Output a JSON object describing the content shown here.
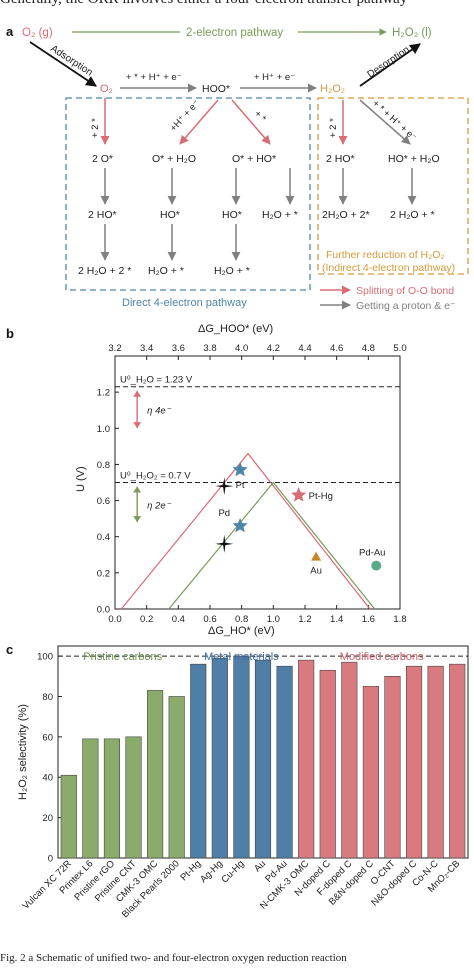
{
  "header_text": "Generally, the ORR involves either a four-electron transfer pathway",
  "footer_text": "Fig. 2  a  Schematic of unified two- and four-electron oxygen reduction reaction",
  "panel_a": {
    "label": "a",
    "o2g": "O₂ (g)",
    "two_e_pathway": "2-electron pathway",
    "h2o2l": "H₂O₂ (l)",
    "adsorption": "Adsorption",
    "desorption": "Desorption",
    "o2": "O₂",
    "step1": "+ * + H⁺ + e⁻",
    "hoo": "HOO*",
    "step2": "+ H⁺ + e⁻",
    "h2o2": "H₂O₂",
    "plus2star": "+ 2 *",
    "plus_h_e": "+H⁺ + e⁻",
    "plus_star": "+ *",
    "plus2star_b": "+ 2 *",
    "plus_star_h_e": "+ * + H⁺ + e⁻",
    "col1": [
      "2 O*",
      "2 HO*",
      "2 H₂O + 2 *"
    ],
    "col2": [
      "O* + H₂O",
      "HO*",
      "H₂O + *"
    ],
    "col3": [
      "O* + HO*",
      "HO*",
      "H₂O + *"
    ],
    "col4": [
      "H₂O + *"
    ],
    "col5": [
      "2 HO*",
      "2H₂O + 2*"
    ],
    "col6": [
      "HO* + H₂O",
      "2 H₂O + *"
    ],
    "direct_label": "Direct 4-electron pathway",
    "further_label_1": "Further reduction of H₂O₂",
    "further_label_2": "(Indirect 4-electron pathway)",
    "legend_split": "Splitting of O-O bond",
    "legend_proton": "Getting a proton & e⁻",
    "colors": {
      "red": "#d96b74",
      "gray": "#808080",
      "green": "#7a9a5a",
      "blue": "#4f86a8",
      "orange": "#d39a3c"
    }
  },
  "panel_b": {
    "label": "b",
    "chart_data": {
      "type": "line",
      "title": "",
      "xlabel": "ΔG_HO* (eV)",
      "x2label": "ΔG_HOO* (eV)",
      "ylabel": "U (V)",
      "xlim": [
        0.0,
        1.8
      ],
      "x2lim": [
        3.2,
        5.0
      ],
      "ylim": [
        0.0,
        1.4
      ],
      "x_ticks": [
        "0.0",
        "0.2",
        "0.4",
        "0.6",
        "0.8",
        "1.0",
        "1.2",
        "1.4",
        "1.6",
        "1.8"
      ],
      "x2_ticks": [
        "3.2",
        "3.4",
        "3.6",
        "3.8",
        "4.0",
        "4.2",
        "4.4",
        "4.6",
        "4.8",
        "5.0"
      ],
      "y_ticks": [
        "0.0",
        "0.2",
        "0.4",
        "0.6",
        "0.8",
        "1.0",
        "1.2"
      ],
      "hlines": [
        {
          "y": 1.23,
          "label": "U⁰_H₂O = 1.23 V"
        },
        {
          "y": 0.7,
          "label": "U⁰_H₂O₂ = 0.7 V"
        }
      ],
      "series": [
        {
          "color": "#d96b74",
          "x": [
            0.04,
            0.84,
            1.61
          ],
          "y": [
            0.0,
            0.86,
            0.0
          ]
        },
        {
          "color": "#7a9a5a",
          "x": [
            0.34,
            1.0,
            1.64
          ],
          "y": [
            0.0,
            0.7,
            0.0
          ]
        }
      ],
      "arrows": [
        {
          "x": 0.14,
          "y_top": 1.23,
          "y_bottom": 0.99,
          "color": "#d96b74",
          "label": "η 4e⁻"
        },
        {
          "x": 0.14,
          "y_top": 0.7,
          "y_bottom": 0.47,
          "color": "#7a9a5a",
          "label": "η 2e⁻"
        }
      ],
      "points": [
        {
          "name": "Pt",
          "x": 0.79,
          "y": 0.77,
          "marker": "star",
          "color": "#4f86a8"
        },
        {
          "name": "",
          "x": 0.79,
          "y": 0.46,
          "marker": "star",
          "color": "#4f86a8"
        },
        {
          "name": "Pd",
          "x": 0.69,
          "y": 0.68,
          "marker": "cross",
          "color": "#111111"
        },
        {
          "name": "",
          "x": 0.69,
          "y": 0.36,
          "marker": "cross",
          "color": "#111111"
        },
        {
          "name": "Pt-Hg",
          "x": 1.16,
          "y": 0.63,
          "marker": "star",
          "color": "#d96b74"
        },
        {
          "name": "Au",
          "x": 1.27,
          "y": 0.29,
          "marker": "triangle",
          "color": "#c8862b"
        },
        {
          "name": "Pd-Au",
          "x": 1.65,
          "y": 0.24,
          "marker": "circle",
          "color": "#5aaa88"
        }
      ]
    }
  },
  "panel_c": {
    "label": "c",
    "chart_data": {
      "type": "bar",
      "title": "",
      "ylabel": "H₂O₂ selectivity (%)",
      "ylim": [
        0,
        105
      ],
      "y_ticks": [
        "0",
        "20",
        "40",
        "60",
        "80",
        "100"
      ],
      "reference_line": 100,
      "groups": [
        {
          "name": "Pristine carbons",
          "color": "#8aab6a",
          "text_color": "#6f9150"
        },
        {
          "name": "Metal materials",
          "color": "#4f7fa6",
          "text_color": "#3f6f9a"
        },
        {
          "name": "Modified carbons",
          "color": "#d97a80",
          "text_color": "#c9636a"
        }
      ],
      "categories": [
        "Vulcan XC 72R",
        "Printex L6",
        "Pristine rGO",
        "Pristine CNT",
        "CMK-3 OMC",
        "Black Pearls 2000",
        "Pt-Hg",
        "Ag-Hg",
        "Cu-Hg",
        "Au",
        "Pd-Au",
        "N-CMK-3 OMC",
        "N-doped C",
        "F-doped C",
        "B&N-doped C",
        "O-CNT",
        "N&O-doped C",
        "Co-N-C",
        "MnO₂-CB"
      ],
      "group_index": [
        0,
        0,
        0,
        0,
        0,
        0,
        1,
        1,
        1,
        1,
        1,
        2,
        2,
        2,
        2,
        2,
        2,
        2,
        2
      ],
      "values": [
        41,
        59,
        59,
        60,
        83,
        80,
        96,
        99,
        100,
        98,
        95,
        98,
        93,
        97,
        85,
        90,
        95,
        95,
        96
      ]
    }
  }
}
